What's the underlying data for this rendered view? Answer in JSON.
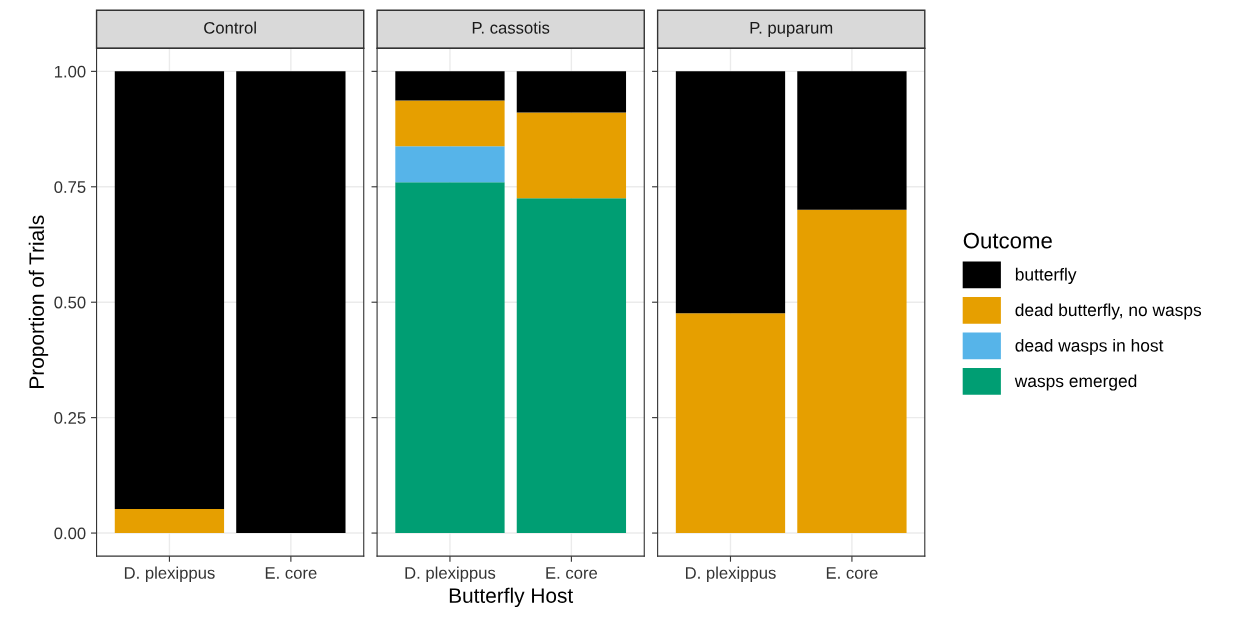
{
  "chart_data": [
    {
      "type": "bar",
      "title": "Control",
      "ylabel": "Proportion of Trials",
      "categories": [
        "D. plexippus",
        "E. core"
      ],
      "stacked": true,
      "legend": "right",
      "ylim": [
        -0.05,
        1.05
      ],
      "yticks": [
        {
          "value": 0,
          "label": "0.00"
        },
        {
          "value": 0.25,
          "label": "0.25"
        },
        {
          "value": 0.5,
          "label": "0.50"
        },
        {
          "value": 0.75,
          "label": "0.75"
        },
        {
          "value": 1,
          "label": "1.00"
        }
      ],
      "grid": true,
      "series": [
        {
          "name": "dead butterfly, no wasps",
          "color": "#e69f00",
          "values": [
            0.052,
            0
          ]
        },
        {
          "name": "butterfly",
          "color": "#000000",
          "values": [
            0.948,
            1.0
          ]
        }
      ]
    },
    {
      "type": "bar",
      "title": "P. cassotis",
      "xlabel": "Butterfly Host",
      "categories": [
        "D. plexippus",
        "E. core"
      ],
      "stacked": true,
      "legend": "right",
      "ylim": [
        -0.05,
        1.05
      ],
      "yticks": [
        {
          "value": 0,
          "label": null
        },
        {
          "value": 0.25,
          "label": null
        },
        {
          "value": 0.5,
          "label": null
        },
        {
          "value": 0.75,
          "label": null
        },
        {
          "value": 1,
          "label": null
        }
      ],
      "grid": true,
      "tick_labels": "x",
      "series": [
        {
          "name": "wasps emerged",
          "color": "#009e73",
          "values": [
            0.76,
            0.725
          ]
        },
        {
          "name": "dead wasps in host",
          "color": "#56b4e9",
          "values": [
            0.078,
            0
          ]
        },
        {
          "name": "dead butterfly, no wasps",
          "color": "#e69f00",
          "values": [
            0.099,
            0.186
          ]
        },
        {
          "name": "butterfly",
          "color": "#000000",
          "values": [
            0.063,
            0.089
          ]
        }
      ]
    },
    {
      "type": "bar",
      "title": "P. puparum",
      "categories": [
        "D. plexippus",
        "E. core"
      ],
      "stacked": true,
      "ylim": [
        -0.05,
        1.05
      ],
      "yticks": [
        {
          "value": 0,
          "label": null
        },
        {
          "value": 0.25,
          "label": null
        },
        {
          "value": 0.5,
          "label": null
        },
        {
          "value": 0.75,
          "label": null
        },
        {
          "value": 1,
          "label": null
        }
      ],
      "grid": true,
      "tick_labels": "x",
      "legend": "right",
      "legend_title": "Outcome",
      "series": [
        {
          "name": "dead butterfly, no wasps",
          "color": "#e69f00",
          "values": [
            0.476,
            0.7
          ]
        },
        {
          "name": "butterfly",
          "color": "#000000",
          "values": [
            0.524,
            0.3
          ]
        }
      ]
    }
  ]
}
